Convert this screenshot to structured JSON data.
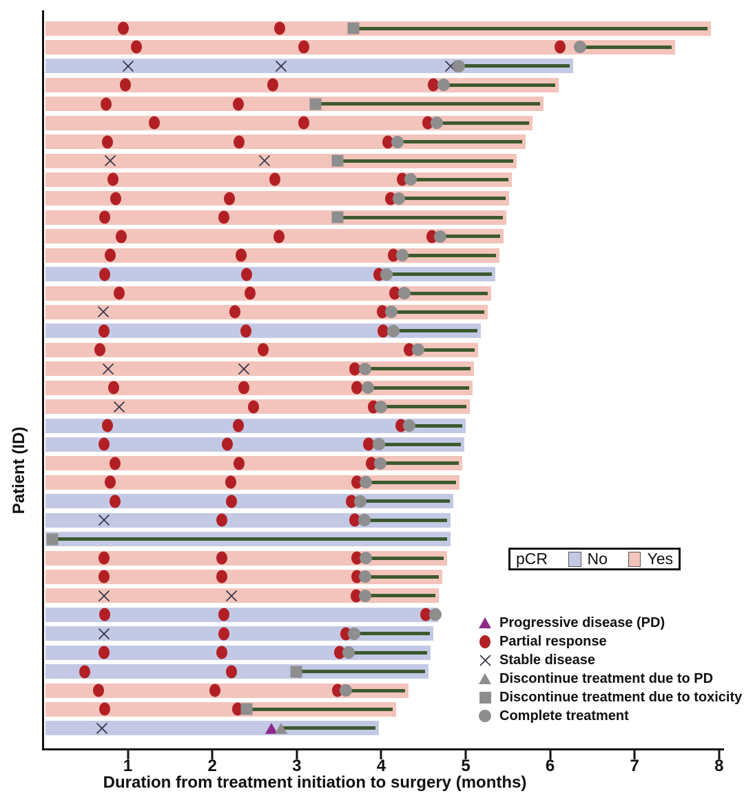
{
  "axis": {
    "x_label": "Duration from treatment initiation to surgery (months)",
    "y_label": "Patient (ID)",
    "x_ticks": [
      1,
      2,
      3,
      4,
      5,
      6,
      7,
      8
    ],
    "x_range": [
      0,
      8
    ]
  },
  "pcr_legend": {
    "title": "pCR",
    "items": [
      {
        "label": "No",
        "color": "#c3c9e4"
      },
      {
        "label": "Yes",
        "color": "#f2c4bb"
      }
    ]
  },
  "marker_legend": [
    {
      "marker": "pd",
      "label": "Progressive disease (PD)"
    },
    {
      "marker": "pr",
      "label": "Partial response"
    },
    {
      "marker": "sd",
      "label": "Stable disease"
    },
    {
      "marker": "disc_pd",
      "label": "Discontinue treatment due to PD"
    },
    {
      "marker": "disc_tox",
      "label": "Discontinue treatment due to toxicity"
    },
    {
      "marker": "complete",
      "label": "Complete treatment"
    }
  ],
  "colors": {
    "pcr_yes_bar": "#f2c4bb",
    "pcr_no_bar": "#c3c9e4",
    "partial_response": "#b22025",
    "stable_disease": "#303045",
    "treatment_line": "#3c5a2e",
    "gray_marker": "#8e8e8e",
    "progressive_disease": "#8e2a8b",
    "axis": "#111111"
  },
  "chart_data": {
    "type": "bar",
    "subtype": "swimmer",
    "title": "",
    "xlabel": "Duration from treatment initiation to surgery (months)",
    "ylabel": "Patient (ID)",
    "xlim": [
      0,
      8
    ],
    "grid": false,
    "marker_types": {
      "pr": "Partial response (red circle)",
      "sd": "Stable disease (black X)",
      "pd": "Progressive disease (purple triangle)",
      "disc_pd": "Discontinue treatment due to PD (gray triangle)",
      "disc_tox": "Discontinue treatment due to toxicity (gray square)",
      "complete": "Complete treatment (gray circle)"
    },
    "rows": [
      {
        "pcr": "Yes",
        "end": 7.9,
        "line_from": 3.67,
        "markers": [
          [
            "pr",
            0.95
          ],
          [
            "pr",
            2.8
          ],
          [
            "disc_tox",
            3.67
          ]
        ]
      },
      {
        "pcr": "Yes",
        "end": 7.48,
        "line_from": 6.35,
        "markers": [
          [
            "pr",
            1.1
          ],
          [
            "pr",
            3.08
          ],
          [
            "pr",
            6.12
          ],
          [
            "complete",
            6.35
          ]
        ]
      },
      {
        "pcr": "No",
        "end": 6.27,
        "line_from": 4.92,
        "markers": [
          [
            "sd",
            1.0
          ],
          [
            "sd",
            2.81
          ],
          [
            "sd",
            4.82
          ],
          [
            "complete",
            4.92
          ]
        ]
      },
      {
        "pcr": "Yes",
        "end": 6.1,
        "line_from": 4.74,
        "markers": [
          [
            "pr",
            0.97
          ],
          [
            "pr",
            2.72
          ],
          [
            "pr",
            4.62
          ],
          [
            "complete",
            4.74
          ]
        ]
      },
      {
        "pcr": "Yes",
        "end": 5.92,
        "line_from": 3.22,
        "markers": [
          [
            "pr",
            0.74
          ],
          [
            "pr",
            2.31
          ],
          [
            "disc_tox",
            3.22
          ]
        ]
      },
      {
        "pcr": "Yes",
        "end": 5.79,
        "line_from": 4.66,
        "markers": [
          [
            "pr",
            1.31
          ],
          [
            "pr",
            3.08
          ],
          [
            "pr",
            4.55
          ],
          [
            "complete",
            4.66
          ]
        ]
      },
      {
        "pcr": "Yes",
        "end": 5.71,
        "line_from": 4.19,
        "markers": [
          [
            "pr",
            0.76
          ],
          [
            "pr",
            2.32
          ],
          [
            "pr",
            4.08
          ],
          [
            "complete",
            4.19
          ]
        ]
      },
      {
        "pcr": "Yes",
        "end": 5.6,
        "line_from": 3.48,
        "markers": [
          [
            "sd",
            0.79
          ],
          [
            "sd",
            2.62
          ],
          [
            "disc_tox",
            3.48
          ]
        ]
      },
      {
        "pcr": "Yes",
        "end": 5.55,
        "line_from": 4.35,
        "markers": [
          [
            "pr",
            0.82
          ],
          [
            "pr",
            2.74
          ],
          [
            "pr",
            4.25
          ],
          [
            "complete",
            4.35
          ]
        ]
      },
      {
        "pcr": "Yes",
        "end": 5.51,
        "line_from": 4.21,
        "markers": [
          [
            "pr",
            0.86
          ],
          [
            "pr",
            2.2
          ],
          [
            "pr",
            4.11
          ],
          [
            "complete",
            4.21
          ]
        ]
      },
      {
        "pcr": "Yes",
        "end": 5.48,
        "line_from": 3.48,
        "markers": [
          [
            "pr",
            0.73
          ],
          [
            "pr",
            2.14
          ],
          [
            "disc_tox",
            3.48
          ]
        ]
      },
      {
        "pcr": "Yes",
        "end": 5.45,
        "line_from": 4.7,
        "markers": [
          [
            "pr",
            0.92
          ],
          [
            "pr",
            2.79
          ],
          [
            "pr",
            4.6
          ],
          [
            "complete",
            4.7
          ]
        ]
      },
      {
        "pcr": "Yes",
        "end": 5.4,
        "line_from": 4.25,
        "markers": [
          [
            "pr",
            0.79
          ],
          [
            "pr",
            2.34
          ],
          [
            "pr",
            4.14
          ],
          [
            "complete",
            4.25
          ]
        ]
      },
      {
        "pcr": "No",
        "end": 5.35,
        "line_from": 4.06,
        "markers": [
          [
            "pr",
            0.73
          ],
          [
            "pr",
            2.41
          ],
          [
            "pr",
            3.97
          ],
          [
            "complete",
            4.06
          ]
        ]
      },
      {
        "pcr": "Yes",
        "end": 5.3,
        "line_from": 4.27,
        "markers": [
          [
            "pr",
            0.9
          ],
          [
            "pr",
            2.45
          ],
          [
            "pr",
            4.16
          ],
          [
            "complete",
            4.27
          ]
        ]
      },
      {
        "pcr": "Yes",
        "end": 5.26,
        "line_from": 4.12,
        "markers": [
          [
            "sd",
            0.71
          ],
          [
            "pr",
            2.27
          ],
          [
            "pr",
            4.01
          ],
          [
            "complete",
            4.12
          ]
        ]
      },
      {
        "pcr": "No",
        "end": 5.18,
        "line_from": 4.14,
        "markers": [
          [
            "pr",
            0.72
          ],
          [
            "pr",
            2.4
          ],
          [
            "pr",
            4.02
          ],
          [
            "complete",
            4.14
          ]
        ]
      },
      {
        "pcr": "Yes",
        "end": 5.15,
        "line_from": 4.44,
        "markers": [
          [
            "pr",
            0.67
          ],
          [
            "pr",
            2.6
          ],
          [
            "pr",
            4.33
          ],
          [
            "complete",
            4.44
          ]
        ]
      },
      {
        "pcr": "Yes",
        "end": 5.1,
        "line_from": 3.81,
        "markers": [
          [
            "sd",
            0.77
          ],
          [
            "sd",
            2.37
          ],
          [
            "pr",
            3.69
          ],
          [
            "complete",
            3.81
          ]
        ]
      },
      {
        "pcr": "Yes",
        "end": 5.08,
        "line_from": 3.84,
        "markers": [
          [
            "pr",
            0.83
          ],
          [
            "pr",
            2.37
          ],
          [
            "pr",
            3.71
          ],
          [
            "complete",
            3.84
          ]
        ]
      },
      {
        "pcr": "Yes",
        "end": 5.05,
        "line_from": 4.0,
        "markers": [
          [
            "sd",
            0.9
          ],
          [
            "pr",
            2.49
          ],
          [
            "pr",
            3.91
          ],
          [
            "complete",
            4.0
          ]
        ]
      },
      {
        "pcr": "No",
        "end": 5.0,
        "line_from": 4.33,
        "markers": [
          [
            "pr",
            0.76
          ],
          [
            "pr",
            2.31
          ],
          [
            "pr",
            4.23
          ],
          [
            "complete",
            4.33
          ]
        ]
      },
      {
        "pcr": "No",
        "end": 4.98,
        "line_from": 3.97,
        "markers": [
          [
            "pr",
            0.72
          ],
          [
            "pr",
            2.18
          ],
          [
            "pr",
            3.85
          ],
          [
            "complete",
            3.97
          ]
        ]
      },
      {
        "pcr": "Yes",
        "end": 4.96,
        "line_from": 3.99,
        "markers": [
          [
            "pr",
            0.85
          ],
          [
            "pr",
            2.32
          ],
          [
            "pr",
            3.88
          ],
          [
            "complete",
            3.99
          ]
        ]
      },
      {
        "pcr": "Yes",
        "end": 4.93,
        "line_from": 3.82,
        "markers": [
          [
            "pr",
            0.79
          ],
          [
            "pr",
            2.22
          ],
          [
            "pr",
            3.71
          ],
          [
            "complete",
            3.82
          ]
        ]
      },
      {
        "pcr": "No",
        "end": 4.85,
        "line_from": 3.75,
        "markers": [
          [
            "pr",
            0.85
          ],
          [
            "pr",
            2.23
          ],
          [
            "pr",
            3.65
          ],
          [
            "complete",
            3.75
          ]
        ]
      },
      {
        "pcr": "No",
        "end": 4.82,
        "line_from": 3.8,
        "markers": [
          [
            "sd",
            0.72
          ],
          [
            "pr",
            2.11
          ],
          [
            "pr",
            3.69
          ],
          [
            "complete",
            3.8
          ]
        ]
      },
      {
        "pcr": "No",
        "end": 4.82,
        "line_from": 0.11,
        "markers": [
          [
            "disc_tox",
            0.11
          ]
        ]
      },
      {
        "pcr": "Yes",
        "end": 4.78,
        "line_from": 3.82,
        "markers": [
          [
            "pr",
            0.72
          ],
          [
            "pr",
            2.11
          ],
          [
            "pr",
            3.71
          ],
          [
            "complete",
            3.82
          ]
        ]
      },
      {
        "pcr": "Yes",
        "end": 4.72,
        "line_from": 3.81,
        "markers": [
          [
            "pr",
            0.72
          ],
          [
            "pr",
            2.11
          ],
          [
            "pr",
            3.71
          ],
          [
            "complete",
            3.81
          ]
        ]
      },
      {
        "pcr": "Yes",
        "end": 4.68,
        "line_from": 3.81,
        "markers": [
          [
            "sd",
            0.72
          ],
          [
            "sd",
            2.23
          ],
          [
            "pr",
            3.7
          ],
          [
            "complete",
            3.81
          ]
        ]
      },
      {
        "pcr": "No",
        "end": 4.67,
        "line_from": 4.64,
        "markers": [
          [
            "pr",
            0.73
          ],
          [
            "pr",
            2.14
          ],
          [
            "pr",
            4.53
          ],
          [
            "complete",
            4.64
          ]
        ]
      },
      {
        "pcr": "No",
        "end": 4.62,
        "line_from": 3.68,
        "markers": [
          [
            "sd",
            0.72
          ],
          [
            "pr",
            2.14
          ],
          [
            "pr",
            3.58
          ],
          [
            "complete",
            3.68
          ]
        ]
      },
      {
        "pcr": "No",
        "end": 4.58,
        "line_from": 3.61,
        "markers": [
          [
            "pr",
            0.72
          ],
          [
            "pr",
            2.11
          ],
          [
            "pr",
            3.51
          ],
          [
            "complete",
            3.61
          ]
        ]
      },
      {
        "pcr": "No",
        "end": 4.56,
        "line_from": 2.99,
        "markers": [
          [
            "pr",
            0.49
          ],
          [
            "pr",
            2.23
          ],
          [
            "disc_tox",
            2.99
          ]
        ]
      },
      {
        "pcr": "Yes",
        "end": 4.32,
        "line_from": 3.58,
        "markers": [
          [
            "pr",
            0.65
          ],
          [
            "pr",
            2.03
          ],
          [
            "pr",
            3.48
          ],
          [
            "complete",
            3.58
          ]
        ]
      },
      {
        "pcr": "Yes",
        "end": 4.18,
        "line_from": 2.41,
        "markers": [
          [
            "pr",
            0.73
          ],
          [
            "pr",
            2.3
          ],
          [
            "disc_tox",
            2.41
          ]
        ]
      },
      {
        "pcr": "No",
        "end": 3.97,
        "line_from": 2.81,
        "markers": [
          [
            "sd",
            0.69
          ],
          [
            "pd",
            2.7
          ],
          [
            "disc_pd",
            2.81
          ]
        ]
      }
    ]
  }
}
